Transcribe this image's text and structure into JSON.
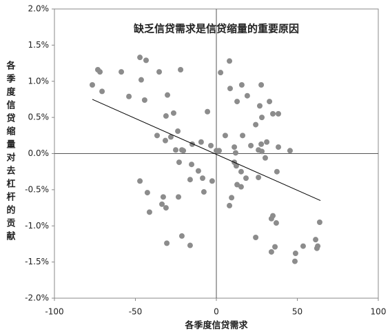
{
  "chart_data": {
    "type": "scatter",
    "title": "缺乏信贷需求是信贷缩量的重要原因",
    "x_label": "各季度信贷需求",
    "y_label": "各季度信贷缩量对去杠杆的贡献",
    "color": "#8c8c8c",
    "xlim": [
      -100,
      100
    ],
    "ylim": [
      -2.0,
      2.0
    ],
    "xticks": [
      -100,
      -50,
      0,
      50,
      100
    ],
    "yticks": [
      {
        "value": -2.0,
        "label": "-2.0%"
      },
      {
        "value": -1.5,
        "label": "-1.5%"
      },
      {
        "value": -1.0,
        "label": "-1.0%"
      },
      {
        "value": -0.5,
        "label": "-0.5%"
      },
      {
        "value": 0,
        "label": "0.0%"
      },
      {
        "value": 0.5,
        "label": "0.5%"
      },
      {
        "value": 1.0,
        "label": "1.0%"
      },
      {
        "value": 1.5,
        "label": "1.5%"
      },
      {
        "value": 2.0,
        "label": "2.0%"
      }
    ],
    "x": [
      -76.6,
      -73.2,
      -71.9,
      -70.6,
      -58.7,
      -54.0,
      -47.2,
      -46.4,
      -43.4,
      -44.3,
      -35.3,
      -30.2,
      -22.1,
      -31.1,
      -26.4,
      -23.8,
      -36.6,
      -31.5,
      -28.1,
      -25.1,
      -21.3,
      -20.4,
      -14.9,
      -9.4,
      -5.5,
      -3.4,
      0,
      1.7,
      -23.0,
      -15.3,
      -11.1,
      -8.5,
      -16.2,
      -2.6,
      -7.7,
      -47.2,
      -42.6,
      -23.4,
      -32.8,
      -33.6,
      -31.1,
      -41.3,
      -21.3,
      -30.6,
      -16.2,
      2.6,
      8.1,
      8.5,
      15.7,
      12.8,
      19.1,
      27.7,
      26.8,
      32.8,
      34.9,
      38.3,
      28.1,
      24.3,
      5.5,
      16.2,
      21.3,
      27.7,
      31.1,
      26.0,
      28.1,
      30.2,
      38.3,
      45.5,
      11.1,
      11.9,
      11.1,
      12.3,
      15.3,
      18.3,
      26.0,
      12.8,
      15.3,
      37.4,
      9.4,
      8.1,
      34.0,
      34.9,
      37.0,
      63.8,
      24.3,
      36.2,
      34.0,
      53.6,
      48.9,
      48.5,
      61.3,
      62.6,
      62.1
    ],
    "y": [
      0.95,
      1.16,
      1.13,
      0.86,
      1.13,
      0.79,
      1.33,
      1.02,
      1.29,
      0.74,
      1.13,
      0.81,
      1.16,
      0.52,
      0.56,
      0.31,
      0.25,
      0.18,
      0.23,
      0.05,
      0.05,
      0.04,
      0.13,
      0.16,
      0.58,
      0.11,
      0.04,
      0.04,
      -0.12,
      -0.15,
      -0.24,
      -0.34,
      -0.36,
      -0.38,
      -0.53,
      -0.38,
      -0.54,
      -0.6,
      -0.6,
      -0.7,
      -0.75,
      -0.81,
      -1.14,
      -1.24,
      -1.27,
      1.12,
      1.28,
      0.9,
      0.95,
      0.72,
      0.8,
      0.95,
      0.66,
      0.72,
      0.55,
      0.55,
      0.5,
      0.4,
      0.25,
      0.25,
      0.11,
      0.13,
      0.16,
      0.05,
      0.03,
      -0.06,
      0.09,
      0.04,
      0.09,
      0.01,
      -0.12,
      -0.17,
      -0.25,
      -0.34,
      -0.33,
      -0.43,
      -0.46,
      -0.25,
      -0.61,
      -0.72,
      -0.9,
      -0.86,
      -0.96,
      -0.95,
      -1.16,
      -1.29,
      -1.36,
      -1.28,
      -1.38,
      -1.49,
      -1.19,
      -1.28,
      -1.31
    ],
    "trendline": {
      "color": "#000000",
      "x": [
        -76.6,
        64.3
      ],
      "y": [
        0.75,
        -0.65
      ]
    }
  }
}
